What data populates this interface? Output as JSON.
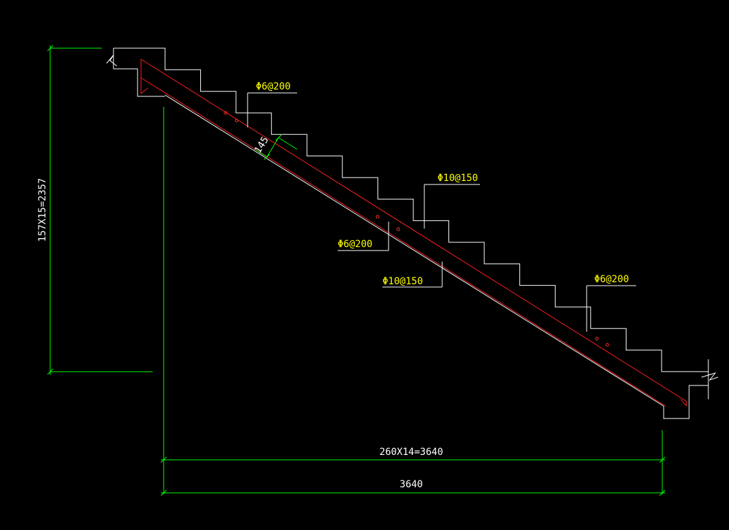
{
  "annotations": [
    "Φ6@200",
    "Φ10@150",
    "Φ6@200",
    "Φ10@150",
    "Φ6@200"
  ],
  "dimensions": {
    "height": "157X15=2357",
    "run": "260X14=3640",
    "total": "3640",
    "thickness": "145"
  }
}
